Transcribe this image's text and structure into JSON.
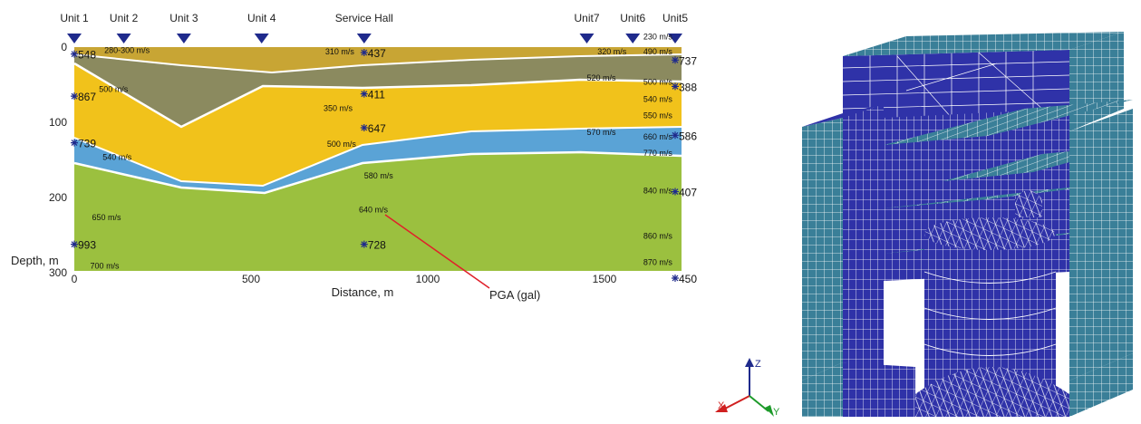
{
  "profile": {
    "units": [
      {
        "label": "Unit 1",
        "x_m": 0
      },
      {
        "label": "Unit 2",
        "x_m": 140
      },
      {
        "label": "Unit 3",
        "x_m": 310
      },
      {
        "label": "Unit 4",
        "x_m": 530
      },
      {
        "label": "Service Hall",
        "x_m": 820
      },
      {
        "label": "Unit7",
        "x_m": 1450
      },
      {
        "label": "Unit6",
        "x_m": 1580
      },
      {
        "label": "Unit5",
        "x_m": 1700
      }
    ],
    "x_ticks": [
      "0",
      "500",
      "1000",
      "1500"
    ],
    "y_ticks": [
      "0",
      "100",
      "200",
      "300"
    ],
    "xlabel": "Distance, m",
    "ylabel": "Depth, m",
    "pga_callout": "PGA (gal)",
    "pga_values": [
      {
        "text": "548",
        "x_m": 0,
        "depth_m": 2
      },
      {
        "text": "867",
        "x_m": 0,
        "depth_m": 58
      },
      {
        "text": "739",
        "x_m": 0,
        "depth_m": 120
      },
      {
        "text": "993",
        "x_m": 0,
        "depth_m": 255
      },
      {
        "text": "437",
        "x_m": 820,
        "depth_m": 0
      },
      {
        "text": "411",
        "x_m": 820,
        "depth_m": 55
      },
      {
        "text": "647",
        "x_m": 820,
        "depth_m": 100
      },
      {
        "text": "728",
        "x_m": 820,
        "depth_m": 255
      },
      {
        "text": "737",
        "x_m": 1700,
        "depth_m": 10
      },
      {
        "text": "388",
        "x_m": 1700,
        "depth_m": 45
      },
      {
        "text": "586",
        "x_m": 1700,
        "depth_m": 110
      },
      {
        "text": "407",
        "x_m": 1700,
        "depth_m": 185
      },
      {
        "text": "450",
        "x_m": 1700,
        "depth_m": 300
      }
    ],
    "velocities": [
      {
        "text": "280-300 m/s",
        "x_m": 85,
        "depth_m": 3
      },
      {
        "text": "500 m/s",
        "x_m": 70,
        "depth_m": 55
      },
      {
        "text": "540 m/s",
        "x_m": 80,
        "depth_m": 145
      },
      {
        "text": "650 m/s",
        "x_m": 50,
        "depth_m": 225
      },
      {
        "text": "700 m/s",
        "x_m": 45,
        "depth_m": 290
      },
      {
        "text": "310 m/s",
        "x_m": 710,
        "depth_m": 5
      },
      {
        "text": "350 m/s",
        "x_m": 705,
        "depth_m": 80
      },
      {
        "text": "500 m/s",
        "x_m": 715,
        "depth_m": 128
      },
      {
        "text": "580 m/s",
        "x_m": 820,
        "depth_m": 170
      },
      {
        "text": "640 m/s",
        "x_m": 805,
        "depth_m": 215
      },
      {
        "text": "230 m/s",
        "x_m": 1610,
        "depth_m": -15
      },
      {
        "text": "320 m/s",
        "x_m": 1480,
        "depth_m": 5
      },
      {
        "text": "490 m/s",
        "x_m": 1610,
        "depth_m": 5
      },
      {
        "text": "500 m/s",
        "x_m": 1610,
        "depth_m": 45
      },
      {
        "text": "520 m/s",
        "x_m": 1450,
        "depth_m": 40
      },
      {
        "text": "540 m/s",
        "x_m": 1610,
        "depth_m": 68
      },
      {
        "text": "550 m/s",
        "x_m": 1610,
        "depth_m": 90
      },
      {
        "text": "570 m/s",
        "x_m": 1450,
        "depth_m": 112
      },
      {
        "text": "660 m/s",
        "x_m": 1610,
        "depth_m": 118
      },
      {
        "text": "770 m/s",
        "x_m": 1610,
        "depth_m": 140
      },
      {
        "text": "840 m/s",
        "x_m": 1610,
        "depth_m": 190
      },
      {
        "text": "860 m/s",
        "x_m": 1610,
        "depth_m": 250
      },
      {
        "text": "870 m/s",
        "x_m": 1610,
        "depth_m": 285
      }
    ],
    "colors": {
      "tan": "#c8a534",
      "olive": "#8b8a5f",
      "yellow": "#f1c21b",
      "blue": "#5aa3d6",
      "green": "#9bc03f",
      "marker": "#1f2a8c",
      "callout_line": "#e0202a"
    }
  },
  "model3d": {
    "axes": {
      "z": "Z",
      "x": "X",
      "y": "Y"
    },
    "colors": {
      "face_light": "#3a7f98",
      "face_dark": "#2f32a8",
      "mesh": "#ffffff"
    }
  }
}
